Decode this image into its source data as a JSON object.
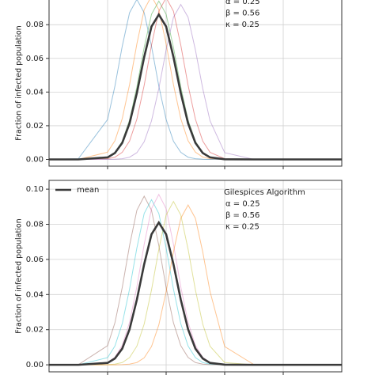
{
  "chart_data": [
    {
      "type": "line",
      "ylabel": "Fraction of infected population",
      "x": [
        0,
        10,
        20,
        22.5,
        25,
        27.5,
        30,
        32.5,
        35,
        37.5,
        40,
        42.5,
        45,
        47.5,
        50,
        52.5,
        55,
        60,
        70,
        80,
        90,
        100
      ],
      "xlim": [
        0,
        100
      ],
      "xticks": [
        20,
        40,
        60,
        80
      ],
      "ylim": [
        -0.004,
        0.105
      ],
      "yticks": [
        {
          "value": 0,
          "label": "0.00"
        },
        0.02,
        0.04,
        0.06,
        0.08
      ],
      "grid": true,
      "annotations": [
        "α = 0.25",
        "β = 0.56",
        "κ = 0.25"
      ],
      "series": [
        {
          "color": "#1f77b4",
          "values": [
            0,
            0.0004,
            0.0237,
            0.0435,
            0.0672,
            0.0871,
            0.095,
            0.0871,
            0.0672,
            0.0435,
            0.0237,
            0.0108,
            0.0042,
            0.0013,
            0.0004,
            0.0001,
            0,
            0,
            0,
            0,
            0,
            0
          ]
        },
        {
          "color": "#ff7f0e",
          "values": [
            0,
            0,
            0.0043,
            0.0111,
            0.0242,
            0.0444,
            0.0686,
            0.0889,
            0.097,
            0.0889,
            0.0686,
            0.0444,
            0.0242,
            0.0111,
            0.0043,
            0.0014,
            0.0004,
            0,
            0,
            0,
            0,
            0
          ]
        },
        {
          "color": "#2ca02c",
          "values": [
            0,
            0,
            0.0013,
            0.0041,
            0.0107,
            0.0234,
            0.0431,
            0.0665,
            0.0862,
            0.094,
            0.0862,
            0.0665,
            0.0431,
            0.0234,
            0.0107,
            0.0041,
            0.0013,
            0.0001,
            0,
            0,
            0,
            0
          ]
        },
        {
          "color": "#d62728",
          "values": [
            0,
            0,
            0.0004,
            0.0013,
            0.0042,
            0.0109,
            0.0239,
            0.044,
            0.0679,
            0.088,
            0.096,
            0.088,
            0.0679,
            0.044,
            0.0239,
            0.0109,
            0.0042,
            0.0004,
            0,
            0,
            0,
            0
          ]
        },
        {
          "color": "#9467bd",
          "values": [
            0,
            0,
            0,
            0.0001,
            0.0004,
            0.0013,
            0.004,
            0.0105,
            0.0229,
            0.0421,
            0.065,
            0.0844,
            0.092,
            0.0844,
            0.065,
            0.0421,
            0.0229,
            0.004,
            0,
            0,
            0,
            0
          ]
        },
        {
          "name": "mean",
          "color": "#3a3a3a",
          "values": [
            0,
            0,
            0.0012,
            0.0038,
            0.0098,
            0.0214,
            0.0394,
            0.0608,
            0.0789,
            0.086,
            0.0789,
            0.0608,
            0.0394,
            0.0214,
            0.0098,
            0.0038,
            0.0012,
            0.0001,
            0,
            0,
            0,
            0
          ]
        }
      ]
    },
    {
      "type": "line",
      "ylabel": "Fraction of infected population",
      "x": [
        0,
        10,
        20,
        22.5,
        25,
        27.5,
        30,
        32.5,
        35,
        37.5,
        40,
        42.5,
        45,
        47.5,
        50,
        52.5,
        55,
        60,
        70,
        80,
        90,
        100
      ],
      "xlim": [
        0,
        100
      ],
      "xticks": [
        20,
        40,
        60,
        80
      ],
      "ylim": [
        -0.004,
        0.105
      ],
      "yticks": [
        {
          "value": 0,
          "label": "0.00"
        },
        0.02,
        0.04,
        0.06,
        0.08,
        {
          "value": 0.1,
          "label": "0.10"
        }
      ],
      "grid": true,
      "legend": "upper left",
      "annotations": [
        "Gilespices Algorithm",
        "α = 0.25",
        "β = 0.56",
        "κ = 0.25"
      ],
      "series": [
        {
          "color": "#8c564b",
          "values": [
            0,
            0.0001,
            0.0109,
            0.0239,
            0.044,
            0.0679,
            0.088,
            0.096,
            0.088,
            0.0679,
            0.044,
            0.0239,
            0.0109,
            0.0042,
            0.0013,
            0.0004,
            0.0001,
            0,
            0,
            0,
            0,
            0
          ]
        },
        {
          "color": "#17becf",
          "values": [
            0,
            0,
            0.0041,
            0.0107,
            0.0234,
            0.0431,
            0.0665,
            0.0862,
            0.094,
            0.0862,
            0.0665,
            0.0431,
            0.0234,
            0.0107,
            0.0041,
            0.0013,
            0.0004,
            0,
            0,
            0,
            0,
            0
          ]
        },
        {
          "color": "#e377c2",
          "values": [
            0,
            0,
            0.0014,
            0.0043,
            0.0111,
            0.0242,
            0.0444,
            0.0686,
            0.0889,
            0.097,
            0.0889,
            0.0686,
            0.0444,
            0.0242,
            0.0111,
            0.0043,
            0.0014,
            0.0001,
            0,
            0,
            0,
            0
          ]
        },
        {
          "color": "#bcbd22",
          "values": [
            0,
            0,
            0.0001,
            0.0004,
            0.0013,
            0.0041,
            0.0106,
            0.0232,
            0.0426,
            0.0658,
            0.0853,
            0.093,
            0.0853,
            0.0658,
            0.0426,
            0.0232,
            0.0106,
            0.0013,
            0,
            0,
            0,
            0
          ]
        },
        {
          "color": "#ff7f0e",
          "values": [
            0,
            0,
            0,
            0,
            0.0001,
            0.0004,
            0.0013,
            0.004,
            0.0104,
            0.0227,
            0.0417,
            0.0643,
            0.0834,
            0.091,
            0.0834,
            0.0643,
            0.0417,
            0.0104,
            0.0001,
            0,
            0,
            0
          ]
        },
        {
          "name": "mean",
          "color": "#3a3a3a",
          "values": [
            0,
            0,
            0.0011,
            0.0036,
            0.0092,
            0.0202,
            0.0371,
            0.0573,
            0.0743,
            0.081,
            0.0743,
            0.0573,
            0.0371,
            0.0202,
            0.0092,
            0.0036,
            0.0011,
            0.0001,
            0,
            0,
            0,
            0
          ]
        }
      ]
    }
  ]
}
